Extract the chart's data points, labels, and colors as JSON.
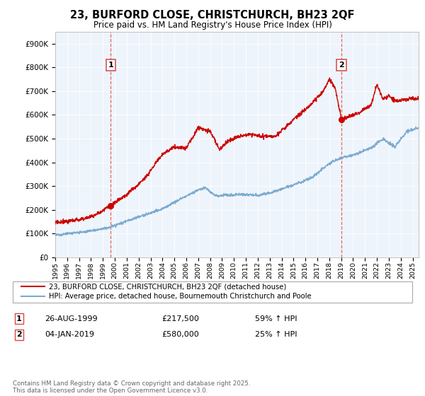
{
  "title_line1": "23, BURFORD CLOSE, CHRISTCHURCH, BH23 2QF",
  "title_line2": "Price paid vs. HM Land Registry's House Price Index (HPI)",
  "legend_red": "23, BURFORD CLOSE, CHRISTCHURCH, BH23 2QF (detached house)",
  "legend_blue": "HPI: Average price, detached house, Bournemouth Christchurch and Poole",
  "annotation1_label": "1",
  "annotation1_date": "26-AUG-1999",
  "annotation1_price": "£217,500",
  "annotation1_hpi": "59% ↑ HPI",
  "annotation2_label": "2",
  "annotation2_date": "04-JAN-2019",
  "annotation2_price": "£580,000",
  "annotation2_hpi": "25% ↑ HPI",
  "footer": "Contains HM Land Registry data © Crown copyright and database right 2025.\nThis data is licensed under the Open Government Licence v3.0.",
  "red_color": "#cc0000",
  "blue_color": "#7aabcf",
  "vline_color": "#dd4444",
  "bg_color": "#eef4fb",
  "ylim": [
    0,
    950000
  ],
  "yticks": [
    0,
    100000,
    200000,
    300000,
    400000,
    500000,
    600000,
    700000,
    800000,
    900000
  ],
  "sale1_x": 1999.65,
  "sale1_y": 217500,
  "sale2_x": 2019.02,
  "sale2_y": 580000,
  "xmin": 1995,
  "xmax": 2025.5
}
